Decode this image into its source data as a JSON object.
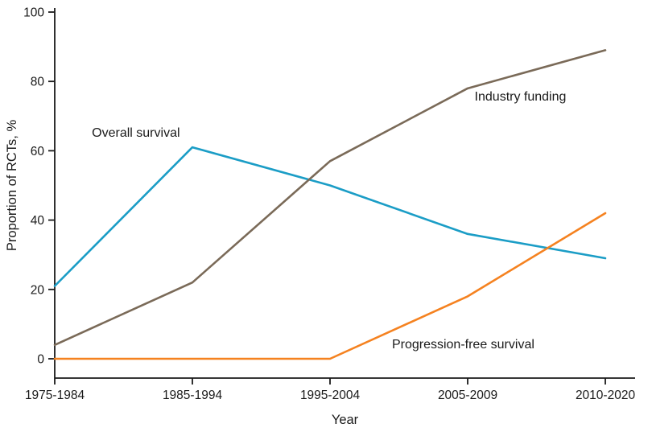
{
  "chart_data": {
    "type": "line",
    "title": "",
    "xlabel": "Year",
    "ylabel": "Proportion of RCTs, %",
    "categories": [
      "1975-1984",
      "1985-1994",
      "1995-2004",
      "2005-2009",
      "2010-2020"
    ],
    "series": [
      {
        "name": "Overall survival",
        "color": "#1b9dc6",
        "values": [
          21,
          61,
          50,
          36,
          29
        ]
      },
      {
        "name": "Industry funding",
        "color": "#7a6a58",
        "values": [
          4,
          22,
          57,
          78,
          89
        ]
      },
      {
        "name": "Progression-free survival",
        "color": "#f58220",
        "values": [
          0,
          0,
          0,
          18,
          42
        ]
      }
    ],
    "annotations": [
      {
        "text": "Overall survival",
        "x": 0.27,
        "y": 64.0,
        "anchor": "start"
      },
      {
        "text": "Industry funding",
        "x": 3.05,
        "y": 74.5,
        "anchor": "start"
      },
      {
        "text": "Progression-free survival",
        "x": 2.45,
        "y": 3.0,
        "anchor": "start"
      }
    ],
    "ylim": [
      0,
      100
    ],
    "yticks": [
      0,
      20,
      40,
      60,
      80,
      100
    ],
    "grid": false,
    "legend": "inline-annotations",
    "axis_color": "#1a1a1a",
    "line_width": 2.6
  }
}
